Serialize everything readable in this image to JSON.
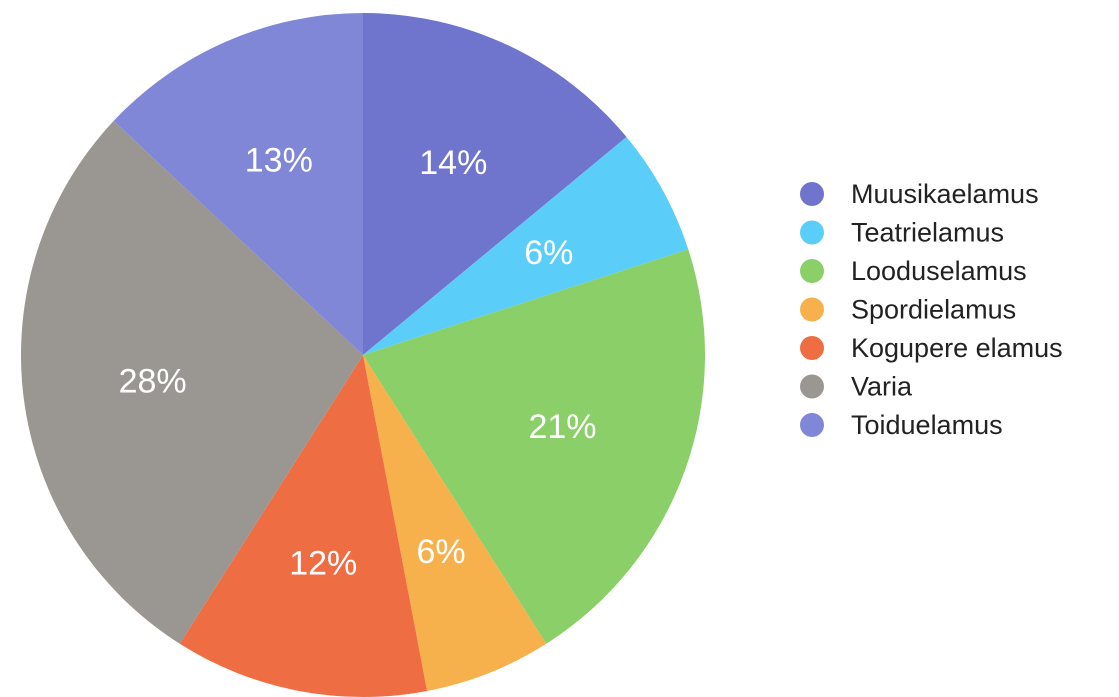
{
  "chart_data": {
    "type": "pie",
    "slices": [
      {
        "label": "Muusikaelamus",
        "value": 14,
        "display": "14%",
        "color": "#6f74cc"
      },
      {
        "label": "Teatrielamus",
        "value": 6,
        "display": "6%",
        "color": "#5bcdf9"
      },
      {
        "label": "Looduselamus",
        "value": 21,
        "display": "21%",
        "color": "#8acf68"
      },
      {
        "label": "Spordielamus",
        "value": 6,
        "display": "6%",
        "color": "#f6b14c"
      },
      {
        "label": "Kogupere elamus",
        "value": 12,
        "display": "12%",
        "color": "#ee6d43"
      },
      {
        "label": "Varia",
        "value": 28,
        "display": "28%",
        "color": "#9a9792"
      },
      {
        "label": "Toiduelamus",
        "value": 13,
        "display": "13%",
        "color": "#7f87d6"
      }
    ],
    "start_angle_deg": 0,
    "direction": "clockwise",
    "legend": "right"
  }
}
